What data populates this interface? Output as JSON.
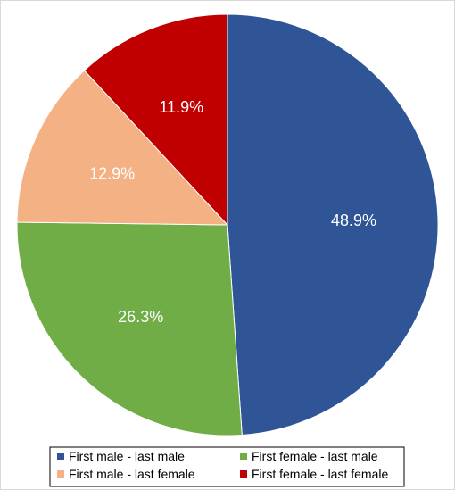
{
  "chart_data": {
    "type": "pie",
    "title": "",
    "slices": [
      {
        "label": "First male - last male",
        "value": 48.9,
        "value_label": "48.9%",
        "color": "#2f5597"
      },
      {
        "label": "First female - last male",
        "value": 26.3,
        "value_label": "26.3%",
        "color": "#70ad47"
      },
      {
        "label": "First male - last female",
        "value": 12.9,
        "value_label": "12.9%",
        "color": "#f4b183"
      },
      {
        "label": "First female - last female",
        "value": 11.9,
        "value_label": "11.9%",
        "color": "#c00000"
      }
    ],
    "start_angle": "12 o'clock",
    "direction": "clockwise",
    "legend": {
      "placement": "bottom",
      "order": [
        "First male - last male",
        "First female - last male",
        "First male - last female",
        "First female - last female"
      ]
    }
  }
}
